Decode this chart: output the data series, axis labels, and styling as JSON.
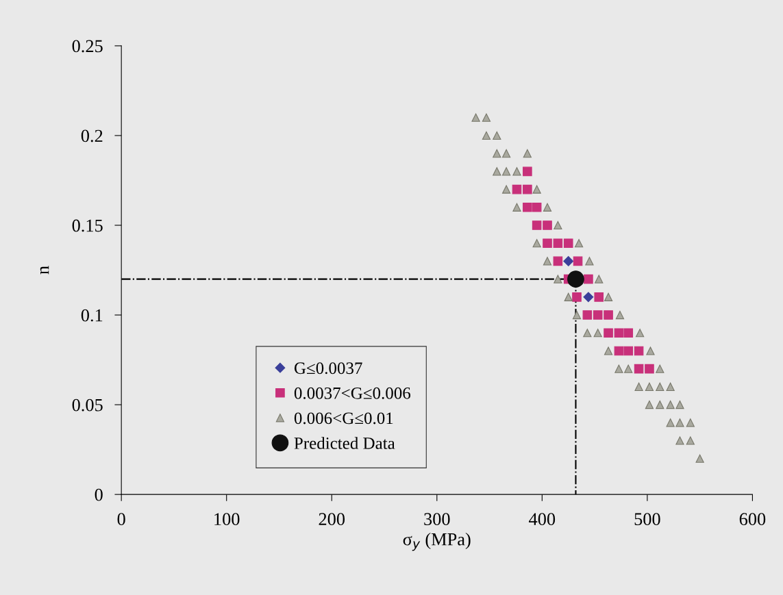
{
  "chart_data": {
    "type": "scatter",
    "xlabel": "σ$_{y}$ (MPa)",
    "ylabel": "n",
    "xlim": [
      0,
      600
    ],
    "xticks": [
      0,
      100,
      200,
      300,
      400,
      500,
      600
    ],
    "ylim": [
      0,
      0.25
    ],
    "yticks": [
      0,
      0.05,
      0.1,
      0.15,
      0.2,
      0.25
    ],
    "grid": false,
    "legend": "bottom left",
    "series": [
      {
        "type": "line",
        "marker": "none",
        "line_style": "dashdot",
        "color": "#000000",
        "x": [
          0,
          432,
          432
        ],
        "values": [
          0.12,
          0.12,
          0
        ]
      },
      {
        "name": "G≤0.0037",
        "marker": "diamond",
        "color": "#3a3f9a",
        "x": [
          425,
          444
        ],
        "values": [
          0.13,
          0.11
        ]
      },
      {
        "name": "0.0037<G≤0.006",
        "marker": "square",
        "color": "#c8307a",
        "x": [
          386,
          376,
          386,
          386,
          395,
          395,
          405,
          405,
          415,
          425,
          415,
          434,
          425,
          444,
          433,
          454,
          443,
          453,
          463,
          463,
          473,
          482,
          473,
          482,
          492,
          492,
          502
        ],
        "values": [
          0.18,
          0.17,
          0.17,
          0.16,
          0.16,
          0.15,
          0.15,
          0.14,
          0.14,
          0.14,
          0.13,
          0.13,
          0.12,
          0.12,
          0.11,
          0.11,
          0.1,
          0.1,
          0.1,
          0.09,
          0.09,
          0.09,
          0.08,
          0.08,
          0.08,
          0.07,
          0.07
        ]
      },
      {
        "name": "0.006<G≤0.01",
        "marker": "triangle",
        "color": "#a9a99f",
        "x": [
          337,
          347,
          347,
          357,
          357,
          366,
          386,
          357,
          366,
          376,
          366,
          395,
          376,
          405,
          415,
          395,
          435,
          405,
          445,
          415,
          454,
          425,
          463,
          433,
          474,
          443,
          453,
          493,
          463,
          503,
          473,
          482,
          512,
          492,
          502,
          512,
          522,
          502,
          512,
          522,
          531,
          522,
          531,
          541,
          531,
          541,
          550
        ],
        "values": [
          0.21,
          0.21,
          0.2,
          0.2,
          0.19,
          0.19,
          0.19,
          0.18,
          0.18,
          0.18,
          0.17,
          0.17,
          0.16,
          0.16,
          0.15,
          0.14,
          0.14,
          0.13,
          0.13,
          0.12,
          0.12,
          0.11,
          0.11,
          0.1,
          0.1,
          0.09,
          0.09,
          0.09,
          0.08,
          0.08,
          0.07,
          0.07,
          0.07,
          0.06,
          0.06,
          0.06,
          0.06,
          0.05,
          0.05,
          0.05,
          0.05,
          0.04,
          0.04,
          0.04,
          0.03,
          0.03,
          0.02
        ]
      },
      {
        "name": "Predicted Data",
        "marker": "circle",
        "color": "#111111",
        "x": [
          432
        ],
        "values": [
          0.12
        ]
      }
    ]
  }
}
